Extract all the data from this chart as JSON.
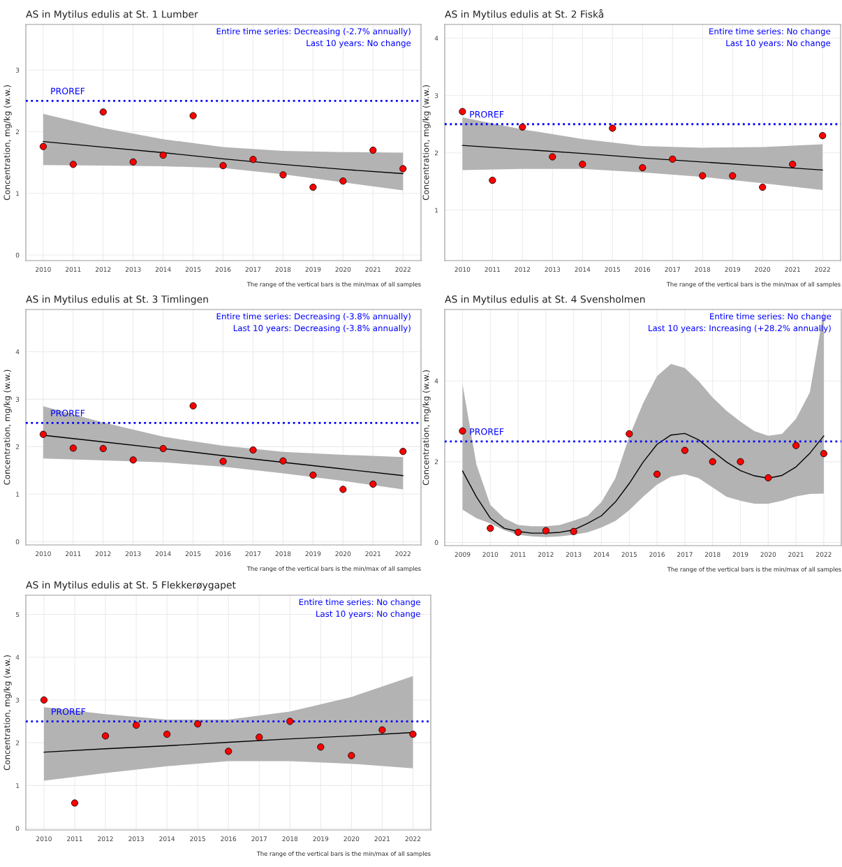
{
  "chart_data": [
    {
      "type": "scatter",
      "title": "AS in Mytilus edulis at St. 1 Lumber",
      "ylabel": "Concentration, mg/kg (w.w.)",
      "xlim": [
        2009.42,
        2022.6
      ],
      "ylim": [
        -0.09,
        3.74
      ],
      "xticks": [
        2010,
        2011,
        2012,
        2013,
        2014,
        2015,
        2016,
        2017,
        2018,
        2019,
        2020,
        2021,
        2022
      ],
      "yticks": [
        0,
        1,
        2,
        3
      ],
      "grid": true,
      "legend": false,
      "annotations": [
        "Entire time series: Decreasing (-2.7% annually)",
        "Last 10 years: No change",
        "The range of the vertical bars is the min/max of all samples"
      ],
      "ref_lines": [
        {
          "axis": "y",
          "value": 2.5,
          "label": "PROREF",
          "color": "#0000ff",
          "line_style": "dotted"
        }
      ],
      "series": [
        {
          "marker": "circle",
          "color": "#ff0000",
          "x": [
            2010,
            2011,
            2012,
            2013,
            2014,
            2015,
            2016,
            2017,
            2018,
            2019,
            2020,
            2021,
            2022
          ],
          "values": [
            1.76,
            1.47,
            2.32,
            1.51,
            1.62,
            2.26,
            1.45,
            1.55,
            1.3,
            1.1,
            1.2,
            1.7,
            1.4
          ]
        },
        {
          "type": "line",
          "marker": "none",
          "color": "#000000",
          "x": [
            2010,
            2012,
            2014,
            2016,
            2018,
            2020,
            2022
          ],
          "values": [
            1.84,
            1.75,
            1.66,
            1.56,
            1.47,
            1.39,
            1.32
          ],
          "lower": [
            1.46,
            1.45,
            1.44,
            1.41,
            1.31,
            1.18,
            1.05
          ],
          "upper": [
            2.29,
            2.06,
            1.88,
            1.75,
            1.69,
            1.67,
            1.66
          ]
        }
      ]
    },
    {
      "type": "scatter",
      "title": "AS in Mytilus edulis at St. 2 Fiskå",
      "ylabel": "Concentration, mg/kg (w.w.)",
      "xlim": [
        2009.41,
        2022.6
      ],
      "ylim": [
        0.12,
        4.24
      ],
      "xticks": [
        2010,
        2011,
        2012,
        2013,
        2014,
        2015,
        2016,
        2017,
        2018,
        2019,
        2020,
        2021,
        2022
      ],
      "yticks": [
        1,
        2,
        3,
        4
      ],
      "grid": true,
      "legend": false,
      "annotations": [
        "Entire time series: No change",
        "Last 10 years: No change",
        "The range of the vertical bars is the min/max of all samples"
      ],
      "ref_lines": [
        {
          "axis": "y",
          "value": 2.5,
          "label": "PROREF",
          "color": "#0000ff",
          "line_style": "dotted"
        }
      ],
      "series": [
        {
          "marker": "circle",
          "color": "#ff0000",
          "x": [
            2010,
            2011,
            2012,
            2013,
            2014,
            2015,
            2016,
            2017,
            2018,
            2019,
            2020,
            2021,
            2022
          ],
          "values": [
            2.72,
            1.52,
            2.45,
            1.93,
            1.8,
            2.43,
            1.74,
            1.89,
            1.6,
            1.6,
            1.4,
            1.8,
            2.3
          ]
        },
        {
          "type": "line",
          "marker": "none",
          "color": "#000000",
          "x": [
            2010,
            2012,
            2014,
            2016,
            2018,
            2020,
            2022
          ],
          "values": [
            2.13,
            2.06,
            1.99,
            1.91,
            1.84,
            1.77,
            1.7
          ],
          "lower": [
            1.7,
            1.72,
            1.72,
            1.66,
            1.58,
            1.47,
            1.35
          ],
          "upper": [
            2.62,
            2.41,
            2.24,
            2.12,
            2.09,
            2.1,
            2.15
          ]
        }
      ]
    },
    {
      "type": "scatter",
      "title": "AS in Mytilus edulis at St. 3 Timlingen",
      "ylabel": "Concentration, mg/kg (w.w.)",
      "xlim": [
        2009.42,
        2022.6
      ],
      "ylim": [
        -0.07,
        4.89
      ],
      "xticks": [
        2010,
        2011,
        2012,
        2013,
        2014,
        2015,
        2016,
        2017,
        2018,
        2019,
        2020,
        2021,
        2022
      ],
      "yticks": [
        0,
        1,
        2,
        3,
        4
      ],
      "grid": true,
      "legend": false,
      "annotations": [
        "Entire time series: Decreasing (-3.8% annually)",
        "Last 10 years: Decreasing (-3.8% annually)",
        "The range of the vertical bars is the min/max of all samples"
      ],
      "ref_lines": [
        {
          "axis": "y",
          "value": 2.5,
          "label": "PROREF",
          "color": "#0000ff",
          "line_style": "dotted"
        }
      ],
      "series": [
        {
          "marker": "circle",
          "color": "#ff0000",
          "x": [
            2010,
            2011,
            2012,
            2013,
            2014,
            2015,
            2016,
            2017,
            2018,
            2019,
            2020,
            2021,
            2022
          ],
          "values": [
            2.26,
            1.97,
            1.96,
            1.72,
            1.96,
            2.86,
            1.69,
            1.93,
            1.7,
            1.4,
            1.1,
            1.21,
            1.9
          ]
        },
        {
          "type": "line",
          "marker": "none",
          "color": "#000000",
          "x": [
            2010,
            2012,
            2014,
            2016,
            2018,
            2020,
            2022
          ],
          "values": [
            2.24,
            2.1,
            1.96,
            1.81,
            1.67,
            1.53,
            1.39
          ],
          "lower": [
            1.75,
            1.71,
            1.67,
            1.58,
            1.44,
            1.28,
            1.1
          ],
          "upper": [
            2.85,
            2.51,
            2.21,
            2.02,
            1.89,
            1.83,
            1.78
          ]
        }
      ]
    },
    {
      "type": "scatter",
      "title": "AS in Mytilus edulis at St. 4 Svensholmen",
      "ylabel": "Concentration, mg/kg (w.w.)",
      "xlim": [
        2008.36,
        2022.63
      ],
      "ylim": [
        -0.08,
        5.77
      ],
      "xticks": [
        2009,
        2010,
        2011,
        2012,
        2013,
        2014,
        2015,
        2016,
        2017,
        2018,
        2019,
        2020,
        2021,
        2022
      ],
      "yticks": [
        0,
        2,
        4
      ],
      "grid": true,
      "legend": false,
      "annotations": [
        "Entire time series: No change",
        "Last 10 years: Increasing (+28.2% annually)",
        "The range of the vertical bars is the min/max of all samples"
      ],
      "ref_lines": [
        {
          "axis": "y",
          "value": 2.5,
          "label": "PROREF",
          "color": "#0000ff",
          "line_style": "dotted"
        }
      ],
      "series": [
        {
          "marker": "circle",
          "color": "#ff0000",
          "x": [
            2009,
            2010,
            2011,
            2012,
            2013,
            2015,
            2016,
            2017,
            2018,
            2019,
            2020,
            2021,
            2022
          ],
          "values": [
            2.76,
            0.35,
            0.25,
            0.29,
            0.27,
            2.69,
            1.69,
            2.28,
            2.0,
            2.0,
            1.6,
            2.4,
            2.2
          ]
        },
        {
          "type": "line",
          "marker": "none",
          "color": "#000000",
          "x": [
            2009,
            2009.5,
            2010,
            2010.5,
            2011,
            2011.5,
            2012,
            2012.5,
            2013,
            2013.5,
            2014,
            2014.5,
            2015,
            2015.5,
            2016,
            2016.5,
            2017,
            2017.5,
            2018,
            2018.5,
            2019,
            2019.5,
            2020,
            2020.5,
            2021,
            2021.5,
            2022
          ],
          "values": [
            1.77,
            1.13,
            0.6,
            0.35,
            0.27,
            0.23,
            0.23,
            0.25,
            0.31,
            0.47,
            0.66,
            1.0,
            1.46,
            1.99,
            2.43,
            2.66,
            2.7,
            2.54,
            2.26,
            1.99,
            1.78,
            1.65,
            1.59,
            1.66,
            1.87,
            2.21,
            2.64
          ],
          "lower": [
            0.81,
            0.6,
            0.47,
            0.3,
            0.19,
            0.15,
            0.13,
            0.15,
            0.19,
            0.25,
            0.37,
            0.53,
            0.8,
            1.13,
            1.43,
            1.63,
            1.69,
            1.59,
            1.36,
            1.13,
            1.03,
            0.96,
            0.96,
            1.03,
            1.14,
            1.2,
            1.21
          ],
          "upper": [
            3.92,
            1.93,
            0.93,
            0.6,
            0.43,
            0.4,
            0.4,
            0.43,
            0.54,
            0.66,
            1.0,
            1.59,
            2.62,
            3.45,
            4.12,
            4.42,
            4.32,
            3.99,
            3.59,
            3.26,
            2.99,
            2.76,
            2.64,
            2.69,
            3.06,
            3.72,
            5.75
          ]
        }
      ]
    },
    {
      "type": "scatter",
      "title": "AS in Mytilus edulis at St. 5 Flekkerøygapet",
      "ylabel": "Concentration, mg/kg (w.w.)",
      "xlim": [
        2009.41,
        2022.58
      ],
      "ylim": [
        -0.04,
        5.45
      ],
      "xticks": [
        2010,
        2011,
        2012,
        2013,
        2014,
        2015,
        2016,
        2017,
        2018,
        2019,
        2020,
        2021,
        2022
      ],
      "yticks": [
        0,
        1,
        2,
        3,
        4,
        5
      ],
      "grid": true,
      "legend": false,
      "annotations": [
        "Entire time series: No change",
        "Last 10 years: No change",
        "The range of the vertical bars is the min/max of all samples"
      ],
      "ref_lines": [
        {
          "axis": "y",
          "value": 2.5,
          "label": "PROREF",
          "color": "#0000ff",
          "line_style": "dotted"
        }
      ],
      "series": [
        {
          "marker": "circle",
          "color": "#ff0000",
          "x": [
            2010,
            2011,
            2012,
            2013,
            2014,
            2015,
            2016,
            2017,
            2018,
            2019,
            2020,
            2021,
            2022
          ],
          "values": [
            3.0,
            0.59,
            2.16,
            2.41,
            2.2,
            2.44,
            1.8,
            2.13,
            2.5,
            1.9,
            1.7,
            2.3,
            2.2
          ]
        },
        {
          "type": "line",
          "marker": "none",
          "color": "#000000",
          "x": [
            2010,
            2012,
            2014,
            2016,
            2018,
            2020,
            2022
          ],
          "values": [
            1.78,
            1.86,
            1.93,
            2.01,
            2.09,
            2.16,
            2.24
          ],
          "lower": [
            1.11,
            1.29,
            1.45,
            1.57,
            1.57,
            1.51,
            1.4
          ],
          "upper": [
            2.83,
            2.67,
            2.54,
            2.54,
            2.73,
            3.07,
            3.56
          ]
        }
      ]
    }
  ]
}
